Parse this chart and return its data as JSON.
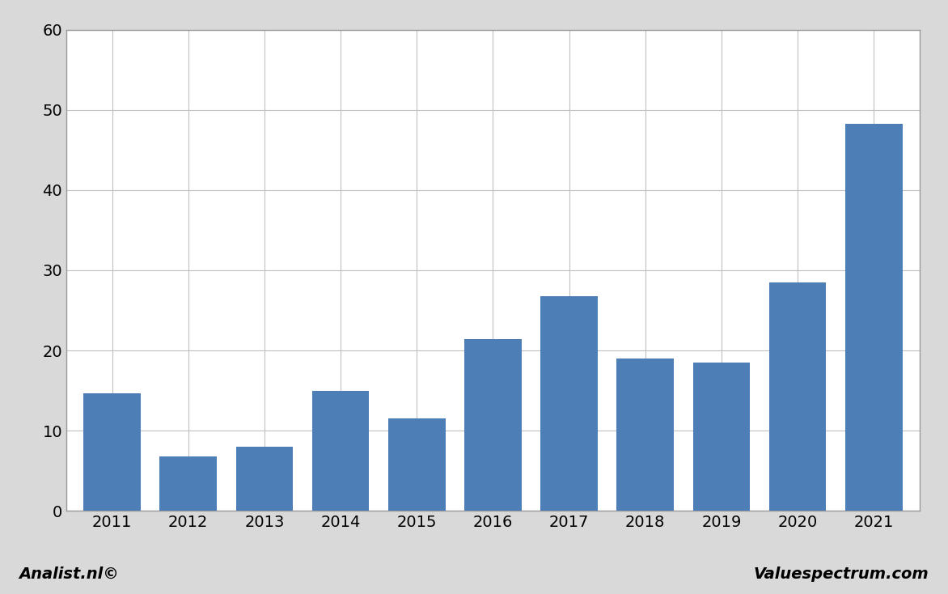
{
  "categories": [
    "2011",
    "2012",
    "2013",
    "2014",
    "2015",
    "2016",
    "2017",
    "2018",
    "2019",
    "2020",
    "2021"
  ],
  "values": [
    14.7,
    6.8,
    8.0,
    15.0,
    11.5,
    21.4,
    26.8,
    19.0,
    18.5,
    28.5,
    48.3
  ],
  "bar_color": "#4d7eb5",
  "ylim": [
    0,
    60
  ],
  "yticks": [
    0,
    10,
    20,
    30,
    40,
    50,
    60
  ],
  "fig_bg_color": "#d9d9d9",
  "plot_bg_color": "#ffffff",
  "grid_color": "#c0c0c0",
  "border_color": "#999999",
  "footer_left": "Analist.nl©",
  "footer_right": "Valuespectrum.com",
  "footer_fontsize": 14,
  "tick_fontsize": 14
}
